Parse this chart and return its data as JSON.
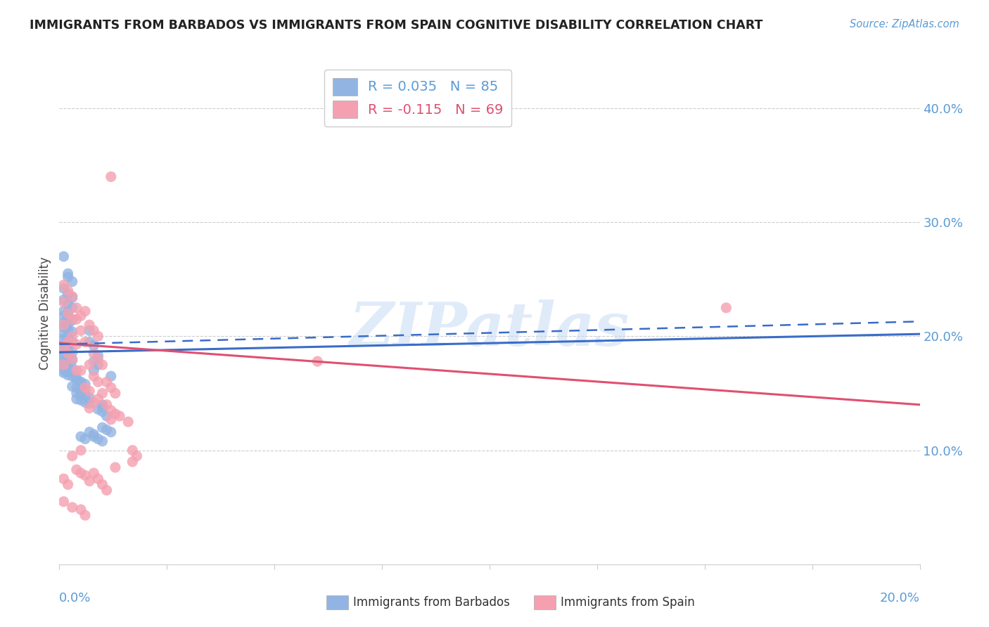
{
  "title": "IMMIGRANTS FROM BARBADOS VS IMMIGRANTS FROM SPAIN COGNITIVE DISABILITY CORRELATION CHART",
  "source": "Source: ZipAtlas.com",
  "ylabel": "Cognitive Disability",
  "xlim": [
    0.0,
    0.2
  ],
  "ylim": [
    0.0,
    0.44
  ],
  "barbados_color": "#92b4e3",
  "spain_color": "#f4a0b0",
  "barbados_line_color": "#3a6cc8",
  "spain_line_color": "#e05070",
  "R_barbados": 0.035,
  "N_barbados": 85,
  "R_spain": -0.115,
  "N_spain": 69,
  "legend_label_barbados": "Immigrants from Barbados",
  "legend_label_spain": "Immigrants from Spain",
  "watermark": "ZIPatlas",
  "barbados_x": [
    0.001,
    0.002,
    0.002,
    0.003,
    0.001,
    0.002,
    0.003,
    0.001,
    0.002,
    0.003,
    0.001,
    0.002,
    0.001,
    0.002,
    0.003,
    0.001,
    0.002,
    0.001,
    0.002,
    0.003,
    0.001,
    0.002,
    0.001,
    0.002,
    0.003,
    0.001,
    0.002,
    0.001,
    0.002,
    0.003,
    0.001,
    0.002,
    0.001,
    0.002,
    0.003,
    0.001,
    0.002,
    0.001,
    0.002,
    0.003,
    0.001,
    0.002,
    0.001,
    0.002,
    0.003,
    0.004,
    0.004,
    0.005,
    0.005,
    0.006,
    0.003,
    0.004,
    0.005,
    0.006,
    0.004,
    0.005,
    0.006,
    0.007,
    0.004,
    0.005,
    0.006,
    0.007,
    0.008,
    0.007,
    0.008,
    0.009,
    0.008,
    0.009,
    0.01,
    0.009,
    0.01,
    0.011,
    0.01,
    0.011,
    0.012,
    0.008,
    0.009,
    0.01,
    0.007,
    0.008,
    0.005,
    0.006,
    0.007,
    0.01,
    0.012
  ],
  "barbados_y": [
    0.27,
    0.255,
    0.252,
    0.248,
    0.242,
    0.237,
    0.234,
    0.232,
    0.228,
    0.225,
    0.222,
    0.22,
    0.218,
    0.216,
    0.214,
    0.212,
    0.21,
    0.208,
    0.206,
    0.204,
    0.202,
    0.2,
    0.198,
    0.197,
    0.195,
    0.193,
    0.191,
    0.19,
    0.188,
    0.186,
    0.185,
    0.184,
    0.182,
    0.181,
    0.179,
    0.178,
    0.176,
    0.175,
    0.173,
    0.172,
    0.17,
    0.169,
    0.168,
    0.166,
    0.165,
    0.163,
    0.162,
    0.16,
    0.159,
    0.158,
    0.156,
    0.155,
    0.153,
    0.152,
    0.15,
    0.149,
    0.148,
    0.146,
    0.145,
    0.144,
    0.142,
    0.141,
    0.192,
    0.205,
    0.178,
    0.183,
    0.17,
    0.175,
    0.138,
    0.136,
    0.134,
    0.13,
    0.12,
    0.118,
    0.116,
    0.112,
    0.11,
    0.108,
    0.116,
    0.114,
    0.112,
    0.11,
    0.195,
    0.14,
    0.165
  ],
  "spain_x": [
    0.001,
    0.002,
    0.003,
    0.001,
    0.004,
    0.002,
    0.003,
    0.001,
    0.005,
    0.003,
    0.002,
    0.004,
    0.001,
    0.002,
    0.003,
    0.001,
    0.004,
    0.006,
    0.005,
    0.004,
    0.007,
    0.008,
    0.009,
    0.006,
    0.007,
    0.005,
    0.008,
    0.009,
    0.006,
    0.007,
    0.01,
    0.009,
    0.008,
    0.011,
    0.007,
    0.012,
    0.013,
    0.014,
    0.012,
    0.016,
    0.017,
    0.018,
    0.017,
    0.013,
    0.008,
    0.009,
    0.01,
    0.011,
    0.012,
    0.001,
    0.002,
    0.003,
    0.004,
    0.005,
    0.006,
    0.007,
    0.008,
    0.009,
    0.01,
    0.011,
    0.012,
    0.013,
    0.005,
    0.155,
    0.001,
    0.003,
    0.005,
    0.006,
    0.06
  ],
  "spain_y": [
    0.245,
    0.24,
    0.235,
    0.23,
    0.225,
    0.22,
    0.215,
    0.21,
    0.205,
    0.2,
    0.195,
    0.193,
    0.19,
    0.185,
    0.18,
    0.175,
    0.17,
    0.222,
    0.218,
    0.215,
    0.21,
    0.205,
    0.2,
    0.195,
    0.175,
    0.17,
    0.165,
    0.16,
    0.155,
    0.152,
    0.15,
    0.145,
    0.142,
    0.14,
    0.137,
    0.135,
    0.132,
    0.13,
    0.127,
    0.125,
    0.1,
    0.095,
    0.09,
    0.085,
    0.08,
    0.075,
    0.07,
    0.065,
    0.34,
    0.075,
    0.07,
    0.095,
    0.083,
    0.08,
    0.078,
    0.073,
    0.185,
    0.18,
    0.175,
    0.16,
    0.155,
    0.15,
    0.1,
    0.225,
    0.055,
    0.05,
    0.048,
    0.043,
    0.178
  ],
  "barbados_line": [
    0.186,
    0.202
  ],
  "spain_line": [
    0.194,
    0.14
  ],
  "barbados_dash_line": [
    0.193,
    0.213
  ],
  "right_yticks": [
    0.1,
    0.2,
    0.3,
    0.4
  ],
  "right_ytick_labels": [
    "10.0%",
    "20.0%",
    "30.0%",
    "40.0%"
  ]
}
